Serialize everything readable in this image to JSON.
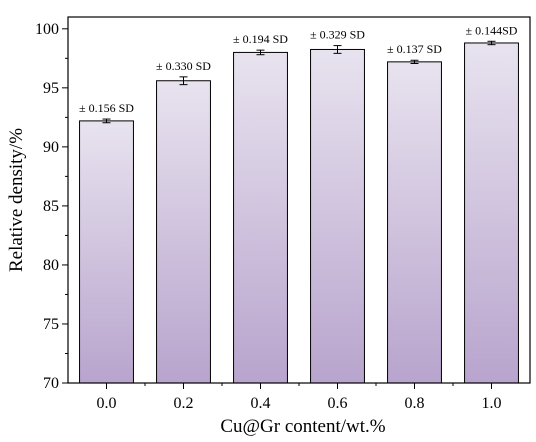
{
  "chart_data": {
    "type": "bar",
    "title": "",
    "xlabel": "Cu@Gr content/wt.%",
    "ylabel": "Relative density/%",
    "categories": [
      "0.0",
      "0.2",
      "0.4",
      "0.6",
      "0.8",
      "1.0"
    ],
    "values": [
      92.2,
      95.6,
      98.0,
      98.25,
      97.2,
      98.8
    ],
    "errors": [
      0.156,
      0.33,
      0.194,
      0.329,
      0.137,
      0.144
    ],
    "data_labels": [
      "± 0.156 SD",
      "± 0.330 SD",
      "± 0.194 SD",
      "± 0.329 SD",
      "± 0.137 SD",
      "± 0.144SD"
    ],
    "ylim": [
      70,
      101
    ],
    "yticks": [
      70,
      75,
      80,
      85,
      90,
      95,
      100
    ],
    "grid": false,
    "colors": {
      "bar_top": "#e8e3ef",
      "bar_bottom": "#b8a4cd"
    }
  }
}
